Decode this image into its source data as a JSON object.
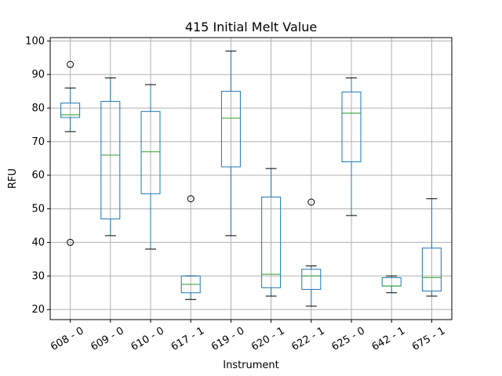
{
  "chart_data": {
    "type": "box",
    "title": "415 Initial Melt Value",
    "xlabel": "Instrument",
    "ylabel": "RFU",
    "ylim": [
      17,
      101
    ],
    "yticks": [
      20,
      30,
      40,
      50,
      60,
      70,
      80,
      90,
      100
    ],
    "grid": true,
    "categories": [
      "608 - 0",
      "609 - 0",
      "610 - 0",
      "617 - 1",
      "619 - 0",
      "620 - 1",
      "622 - 1",
      "625 - 0",
      "642 - 1",
      "675 - 1"
    ],
    "boxes": [
      {
        "whisker_low": 73,
        "q1": 77.2,
        "median": 78,
        "q3": 81.5,
        "whisker_high": 86,
        "outliers": [
          93,
          40
        ]
      },
      {
        "whisker_low": 42,
        "q1": 47,
        "median": 66,
        "q3": 82,
        "whisker_high": 89,
        "outliers": []
      },
      {
        "whisker_low": 38,
        "q1": 54.5,
        "median": 67,
        "q3": 79,
        "whisker_high": 87,
        "outliers": []
      },
      {
        "whisker_low": 23,
        "q1": 25,
        "median": 27.5,
        "q3": 30,
        "whisker_high": 30,
        "outliers": [
          53
        ]
      },
      {
        "whisker_low": 42,
        "q1": 62.5,
        "median": 77,
        "q3": 85,
        "whisker_high": 97,
        "outliers": []
      },
      {
        "whisker_low": 24,
        "q1": 26.5,
        "median": 30.5,
        "q3": 53.5,
        "whisker_high": 62,
        "outliers": []
      },
      {
        "whisker_low": 21,
        "q1": 26,
        "median": 30,
        "q3": 32,
        "whisker_high": 33,
        "outliers": [
          52
        ]
      },
      {
        "whisker_low": 48,
        "q1": 64,
        "median": 78.5,
        "q3": 84.8,
        "whisker_high": 89,
        "outliers": []
      },
      {
        "whisker_low": 25,
        "q1": 27,
        "median": 27,
        "q3": 29.5,
        "whisker_high": 30,
        "outliers": []
      },
      {
        "whisker_low": 24,
        "q1": 25.5,
        "median": 29.5,
        "q3": 38.3,
        "whisker_high": 53,
        "outliers": []
      }
    ],
    "colors": {
      "box": "#1f77b4",
      "median": "#2ca02c",
      "whisker_cap": "#000000",
      "outlier": "#000000",
      "grid": "#b0b0b0"
    }
  }
}
